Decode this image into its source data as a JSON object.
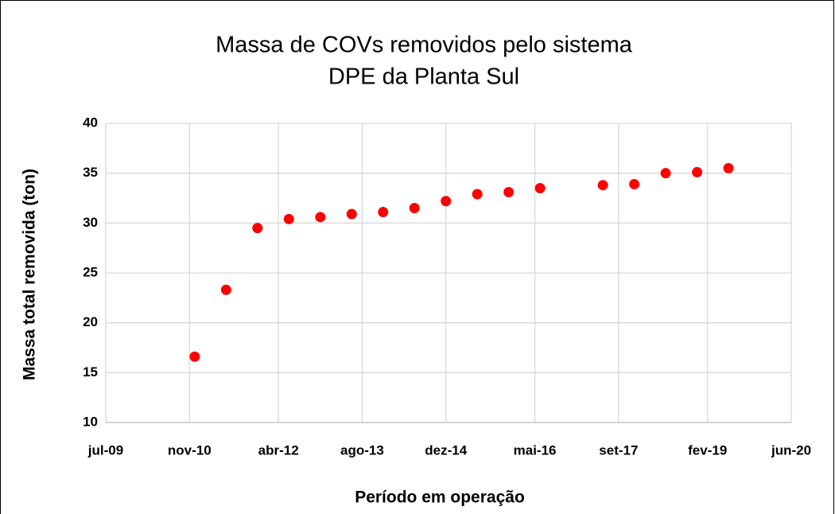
{
  "chart_data": {
    "type": "scatter",
    "title": [
      "Massa de COVs removidos pelo sistema",
      "DPE da Planta Sul"
    ],
    "xlabel": "Período em operação",
    "ylabel": "Massa total removida (ton)",
    "x": [
      "2010-12",
      "2011-06",
      "2011-12",
      "2012-06",
      "2012-12",
      "2013-06",
      "2013-12",
      "2014-06",
      "2014-12",
      "2015-06",
      "2015-12",
      "2016-06",
      "2017-06",
      "2017-12",
      "2018-06",
      "2018-12",
      "2019-06"
    ],
    "values": [
      16.6,
      23.3,
      29.5,
      30.4,
      30.6,
      30.9,
      31.1,
      31.5,
      32.2,
      32.9,
      33.1,
      33.5,
      33.8,
      33.9,
      35.0,
      35.1,
      35.5
    ],
    "color": "#ff0000",
    "xlim": [
      "2009-07",
      "2020-06"
    ],
    "xticks": [
      {
        "value": "2009-07",
        "label": "jul-09"
      },
      {
        "value": "2010-11",
        "label": "nov-10"
      },
      {
        "value": "2012-04",
        "label": "abr-12"
      },
      {
        "value": "2013-08",
        "label": "ago-13"
      },
      {
        "value": "2014-12",
        "label": "dez-14"
      },
      {
        "value": "2016-05",
        "label": "mai-16"
      },
      {
        "value": "2017-09",
        "label": "set-17"
      },
      {
        "value": "2019-02",
        "label": "fev-19"
      },
      {
        "value": "2020-06",
        "label": "jun-20"
      }
    ],
    "ylim": [
      10,
      40
    ],
    "yticks": [
      10,
      15,
      20,
      25,
      30,
      35,
      40
    ],
    "grid": true
  }
}
